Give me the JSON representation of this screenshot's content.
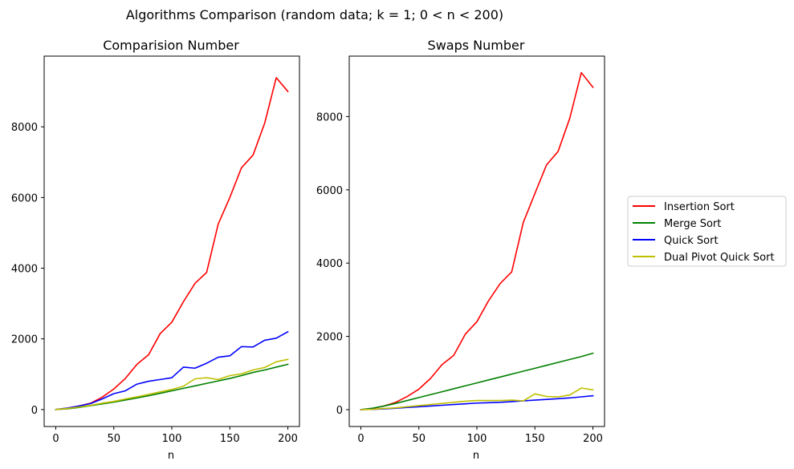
{
  "figure": {
    "suptitle": "Algorithms Comparison (random data;  k = 1;  0 < n < 200)"
  },
  "legend": {
    "placement": "right",
    "entries": [
      {
        "label": "Insertion Sort",
        "color": "#ff0000"
      },
      {
        "label": "Merge Sort",
        "color": "#008000"
      },
      {
        "label": "Quick Sort",
        "color": "#0000ff"
      },
      {
        "label": "Dual Pivot Quick Sort",
        "color": "#bfbf00"
      }
    ]
  },
  "chart_data": [
    {
      "type": "line",
      "title": "Comparision Number",
      "xlabel": "n",
      "ylabel": "",
      "xlim": [
        -10,
        210
      ],
      "ylim": [
        -480,
        10000
      ],
      "xticks": [
        0,
        50,
        100,
        150,
        200
      ],
      "yticks": [
        0,
        2000,
        4000,
        6000,
        8000
      ],
      "grid": false,
      "x": [
        0,
        10,
        20,
        30,
        40,
        50,
        60,
        70,
        80,
        90,
        100,
        110,
        120,
        130,
        140,
        150,
        160,
        170,
        180,
        190,
        200
      ],
      "series": [
        {
          "name": "Insertion Sort",
          "color": "#ff0000",
          "values": [
            0,
            40,
            100,
            180,
            350,
            580,
            880,
            1280,
            1550,
            2150,
            2470,
            3050,
            3570,
            3880,
            5250,
            6000,
            6840,
            7200,
            8100,
            9390,
            9000
          ]
        },
        {
          "name": "Merge Sort",
          "color": "#008000",
          "values": [
            0,
            20,
            60,
            110,
            160,
            210,
            270,
            330,
            390,
            460,
            530,
            600,
            670,
            740,
            810,
            880,
            960,
            1050,
            1120,
            1200,
            1280
          ]
        },
        {
          "name": "Quick Sort",
          "color": "#0000ff",
          "values": [
            0,
            40,
            100,
            170,
            300,
            450,
            530,
            720,
            800,
            850,
            900,
            1200,
            1170,
            1310,
            1480,
            1520,
            1780,
            1770,
            1960,
            2020,
            2200
          ]
        },
        {
          "name": "Dual Pivot Quick Sort",
          "color": "#bfbf00",
          "values": [
            0,
            30,
            70,
            120,
            180,
            230,
            300,
            360,
            430,
            500,
            570,
            660,
            870,
            900,
            850,
            960,
            1010,
            1120,
            1190,
            1350,
            1420
          ]
        }
      ]
    },
    {
      "type": "line",
      "title": "Swaps Number",
      "xlabel": "n",
      "ylabel": "",
      "xlim": [
        -10,
        210
      ],
      "ylim": [
        -460,
        9650
      ],
      "xticks": [
        0,
        50,
        100,
        150,
        200
      ],
      "yticks": [
        0,
        2000,
        4000,
        6000,
        8000
      ],
      "grid": false,
      "x": [
        0,
        10,
        20,
        30,
        40,
        50,
        60,
        70,
        80,
        90,
        100,
        110,
        120,
        130,
        140,
        150,
        160,
        170,
        180,
        190,
        200
      ],
      "series": [
        {
          "name": "Insertion Sort",
          "color": "#ff0000",
          "values": [
            0,
            30,
            100,
            200,
            360,
            560,
            850,
            1230,
            1480,
            2060,
            2400,
            2970,
            3440,
            3760,
            5110,
            5900,
            6680,
            7050,
            7950,
            9200,
            8800
          ]
        },
        {
          "name": "Merge Sort",
          "color": "#008000",
          "values": [
            0,
            40,
            100,
            170,
            250,
            330,
            410,
            490,
            570,
            650,
            730,
            810,
            890,
            970,
            1050,
            1130,
            1210,
            1290,
            1370,
            1450,
            1540
          ]
        },
        {
          "name": "Quick Sort",
          "color": "#0000ff",
          "values": [
            0,
            10,
            20,
            40,
            60,
            80,
            100,
            120,
            140,
            160,
            180,
            190,
            200,
            220,
            240,
            260,
            280,
            300,
            320,
            350,
            380
          ]
        },
        {
          "name": "Dual Pivot Quick Sort",
          "color": "#bfbf00",
          "values": [
            0,
            10,
            30,
            50,
            80,
            110,
            140,
            170,
            200,
            230,
            250,
            250,
            250,
            260,
            240,
            430,
            360,
            350,
            400,
            590,
            540
          ]
        }
      ]
    }
  ]
}
